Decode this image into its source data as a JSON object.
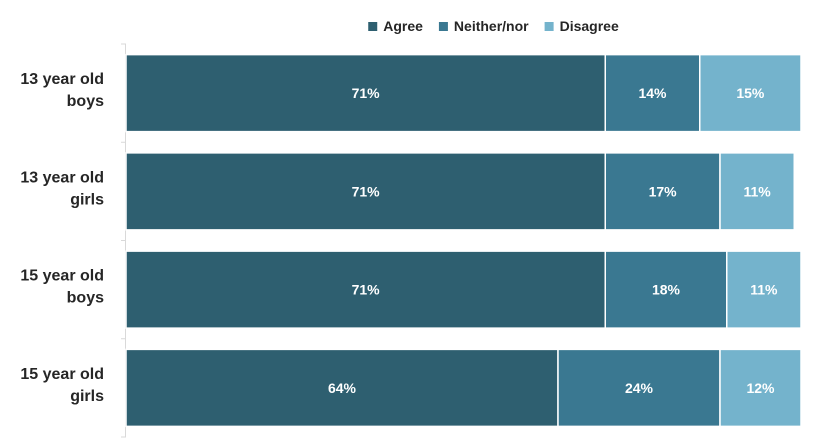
{
  "chart_data": {
    "type": "bar",
    "orientation": "horizontal",
    "stacked": true,
    "percent_stacked": true,
    "categories": [
      [
        "13 year old",
        "boys"
      ],
      [
        "13 year old",
        "girls"
      ],
      [
        "15 year old",
        "boys"
      ],
      [
        "15 year old",
        "girls"
      ]
    ],
    "series": [
      {
        "name": "Agree",
        "color": "#2e5f70",
        "values": [
          71,
          71,
          71,
          64
        ],
        "labels": [
          "71%",
          "71%",
          "71%",
          "64%"
        ]
      },
      {
        "name": "Neither/nor",
        "color": "#3a7891",
        "values": [
          14,
          17,
          18,
          24
        ],
        "labels": [
          "14%",
          "17%",
          "18%",
          "24%"
        ]
      },
      {
        "name": "Disagree",
        "color": "#74b3cc",
        "values": [
          15,
          11,
          11,
          12
        ],
        "labels": [
          "15%",
          "11%",
          "11%",
          "12%"
        ]
      }
    ],
    "xlim": [
      0,
      100
    ],
    "legend_position": "top-center",
    "grid": false
  }
}
